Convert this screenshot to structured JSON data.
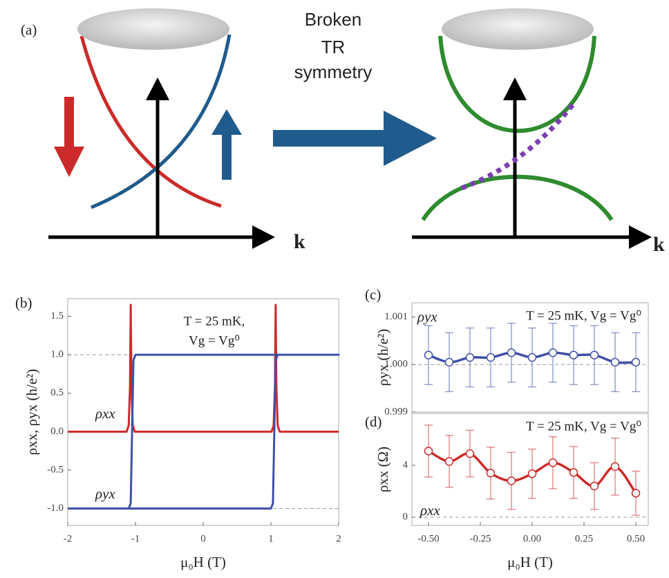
{
  "diagram": {
    "panel_label": "(a)",
    "caption_lines": [
      "Broken",
      "TR",
      "symmetry"
    ],
    "axis_labels": [
      "k",
      "k"
    ]
  },
  "chart_data": [
    {
      "type": "line",
      "panel_label": "(b)",
      "xlabel": "μ₀H (T)",
      "ylabel": "ρxx, ρyx (h/e²)",
      "annotations": [
        "T = 25 mK,",
        "Vg = Vg⁰"
      ],
      "xlim": [
        -2,
        2
      ],
      "ylim": [
        -1.22,
        1.73
      ],
      "xticks": [
        -2,
        -1,
        0,
        1,
        2
      ],
      "yticks": [
        {
          "value": -1,
          "label": "-1.0"
        },
        -0.5,
        {
          "value": 0,
          "label": "0.0"
        },
        0.5,
        {
          "value": 1,
          "label": "1.0"
        },
        1.5
      ],
      "reference_lines": [
        1,
        -1
      ],
      "series": [
        {
          "name": "ρxx",
          "color": "#cc2a2a",
          "x": [
            -2,
            -1.13,
            -1.1,
            -1.08,
            -1.07,
            -1.06,
            -1.04,
            -1.01,
            1.01,
            1.04,
            1.06,
            1.07,
            1.08,
            1.1,
            1.13,
            2
          ],
          "values": [
            0,
            0,
            0.08,
            0.6,
            1.65,
            0.6,
            0.08,
            0,
            0,
            0.08,
            0.6,
            1.65,
            0.6,
            0.08,
            0,
            0
          ]
        },
        {
          "name": "ρyx",
          "color": "#3f4fa8",
          "x": [
            -2,
            1.0,
            1.03,
            1.05,
            1.07,
            1.1,
            2,
            2,
            -1.0,
            -1.03,
            -1.05,
            -1.07,
            -1.1,
            -2
          ],
          "values": [
            -1,
            -1,
            -0.93,
            0,
            0.93,
            1,
            1,
            1,
            1,
            0.93,
            0,
            -0.93,
            -1,
            -1
          ]
        }
      ]
    },
    {
      "type": "errorbar",
      "panel_label": "(c)",
      "ylabel": "ρyx (h/e²)",
      "annotations": [
        "T = 25 mK, Vg = Vg⁰"
      ],
      "xlim": [
        -0.58,
        0.56
      ],
      "ylim": [
        0.999,
        1.0013
      ],
      "yticks": [
        {
          "value": 0.999,
          "label": "0.999"
        },
        {
          "value": 1,
          "label": "1.000"
        },
        {
          "value": 1.001,
          "label": "1.001"
        }
      ],
      "reference_lines": [
        1
      ],
      "series": [
        {
          "name": "ρyx",
          "color": "#3f4fa8",
          "x": [
            -0.5,
            -0.4,
            -0.3,
            -0.2,
            -0.1,
            0,
            0.1,
            0.2,
            0.3,
            0.4,
            0.5
          ],
          "values": [
            1.0002,
            1.00005,
            1.00015,
            1.00015,
            1.00025,
            1.00015,
            1.00025,
            1.0002,
            1.0002,
            1.00005,
            1.00005
          ],
          "errors": [
            0.00062,
            0.00062,
            0.00062,
            0.00062,
            0.00062,
            0.00062,
            0.00062,
            0.00062,
            0.00062,
            0.00062,
            0.00062
          ]
        }
      ]
    },
    {
      "type": "errorbar",
      "panel_label": "(d)",
      "xlabel": "μ₀H (T)",
      "ylabel": "ρxx (Ω)",
      "annotations": [
        "T = 25 mK, Vg = Vg⁰"
      ],
      "xlim": [
        -0.58,
        0.56
      ],
      "ylim": [
        -0.64,
        8
      ],
      "xticks": [
        {
          "value": -0.5,
          "label": "-0.50"
        },
        -0.25,
        {
          "value": 0,
          "label": "0.00"
        },
        0.25,
        {
          "value": 0.5,
          "label": "0.50"
        }
      ],
      "yticks": [
        0,
        4
      ],
      "reference_lines": [
        0
      ],
      "series": [
        {
          "name": "ρxx",
          "color": "#cc2a2a",
          "x": [
            -0.5,
            -0.4,
            -0.3,
            -0.2,
            -0.1,
            0,
            0.1,
            0.2,
            0.3,
            0.4,
            0.5
          ],
          "values": [
            5.1,
            4.3,
            4.9,
            3.4,
            2.8,
            3.35,
            4.2,
            3.45,
            2.4,
            3.9,
            1.85
          ],
          "errors": [
            2,
            2,
            1.8,
            2,
            2.2,
            1.9,
            2,
            2,
            1.8,
            2.2,
            1.7
          ]
        }
      ]
    }
  ]
}
